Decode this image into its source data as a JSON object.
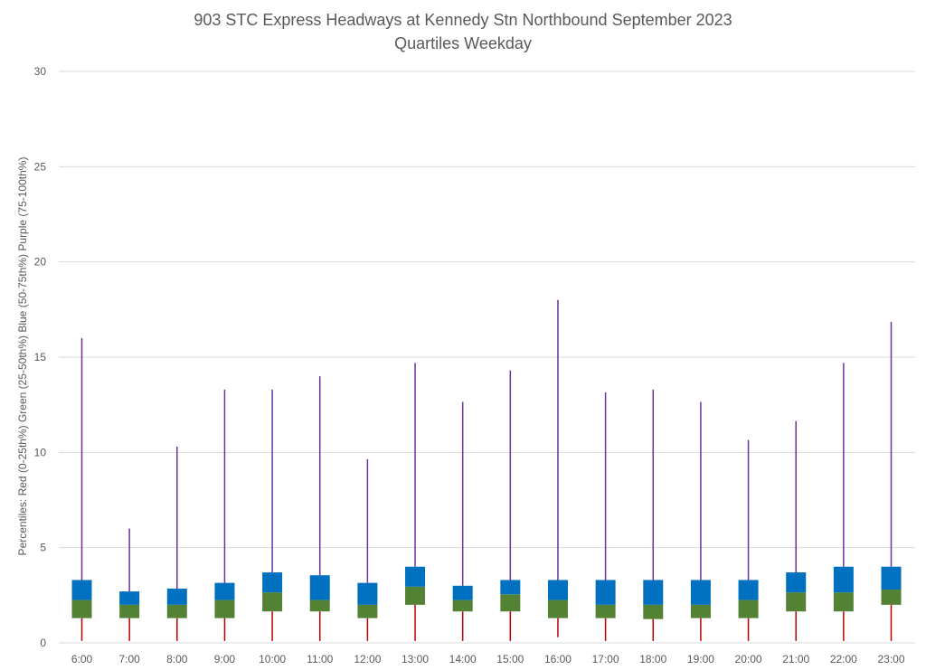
{
  "chart_data": {
    "type": "box",
    "title": "903 STC Express Headways at Kennedy Stn Northbound September 2023",
    "subtitle": "Quartiles Weekday",
    "ylabel": "Percentiles:  Red (0-25th%)  Green (25-50th%)  Blue (50-75th%)  Purple (75-100th%)",
    "xlabel": "",
    "ylim": [
      0,
      30
    ],
    "yticks": [
      "0",
      "5",
      "10",
      "15",
      "20",
      "25",
      "30"
    ],
    "grid": true,
    "colors": {
      "min_q1": "#C00000",
      "q1_median": "#548235",
      "median_q3": "#0070C0",
      "q3_max": "#7030A0"
    },
    "categories": [
      "6:00",
      "7:00",
      "8:00",
      "9:00",
      "10:00",
      "11:00",
      "12:00",
      "13:00",
      "14:00",
      "15:00",
      "16:00",
      "17:00",
      "18:00",
      "19:00",
      "20:00",
      "21:00",
      "22:00",
      "23:00"
    ],
    "series": [
      {
        "min": [
          0.1,
          0.1,
          0.1,
          0.1,
          0.1,
          0.1,
          0.1,
          0.1,
          0.1,
          0.1,
          0.3,
          0.1,
          0.1,
          0.1,
          0.1,
          0.1,
          0.1,
          0.1
        ],
        "q1": [
          1.3,
          1.3,
          1.3,
          1.3,
          1.65,
          1.65,
          1.3,
          2.0,
          1.65,
          1.65,
          1.3,
          1.3,
          1.25,
          1.3,
          1.3,
          1.65,
          1.65,
          2.0
        ],
        "median": [
          2.25,
          2.0,
          2.0,
          2.25,
          2.65,
          2.25,
          2.0,
          2.95,
          2.25,
          2.55,
          2.25,
          2.0,
          2.0,
          2.0,
          2.25,
          2.65,
          2.65,
          2.8
        ],
        "q3": [
          3.3,
          2.7,
          2.85,
          3.15,
          3.7,
          3.55,
          3.15,
          4.0,
          3.0,
          3.3,
          3.3,
          3.3,
          3.3,
          3.3,
          3.3,
          3.7,
          4.0,
          4.0
        ],
        "max": [
          16.0,
          6.0,
          10.3,
          13.3,
          13.3,
          14.0,
          9.65,
          14.7,
          12.65,
          14.3,
          18.0,
          13.15,
          13.3,
          12.65,
          10.65,
          11.65,
          14.7,
          16.85
        ]
      }
    ]
  }
}
